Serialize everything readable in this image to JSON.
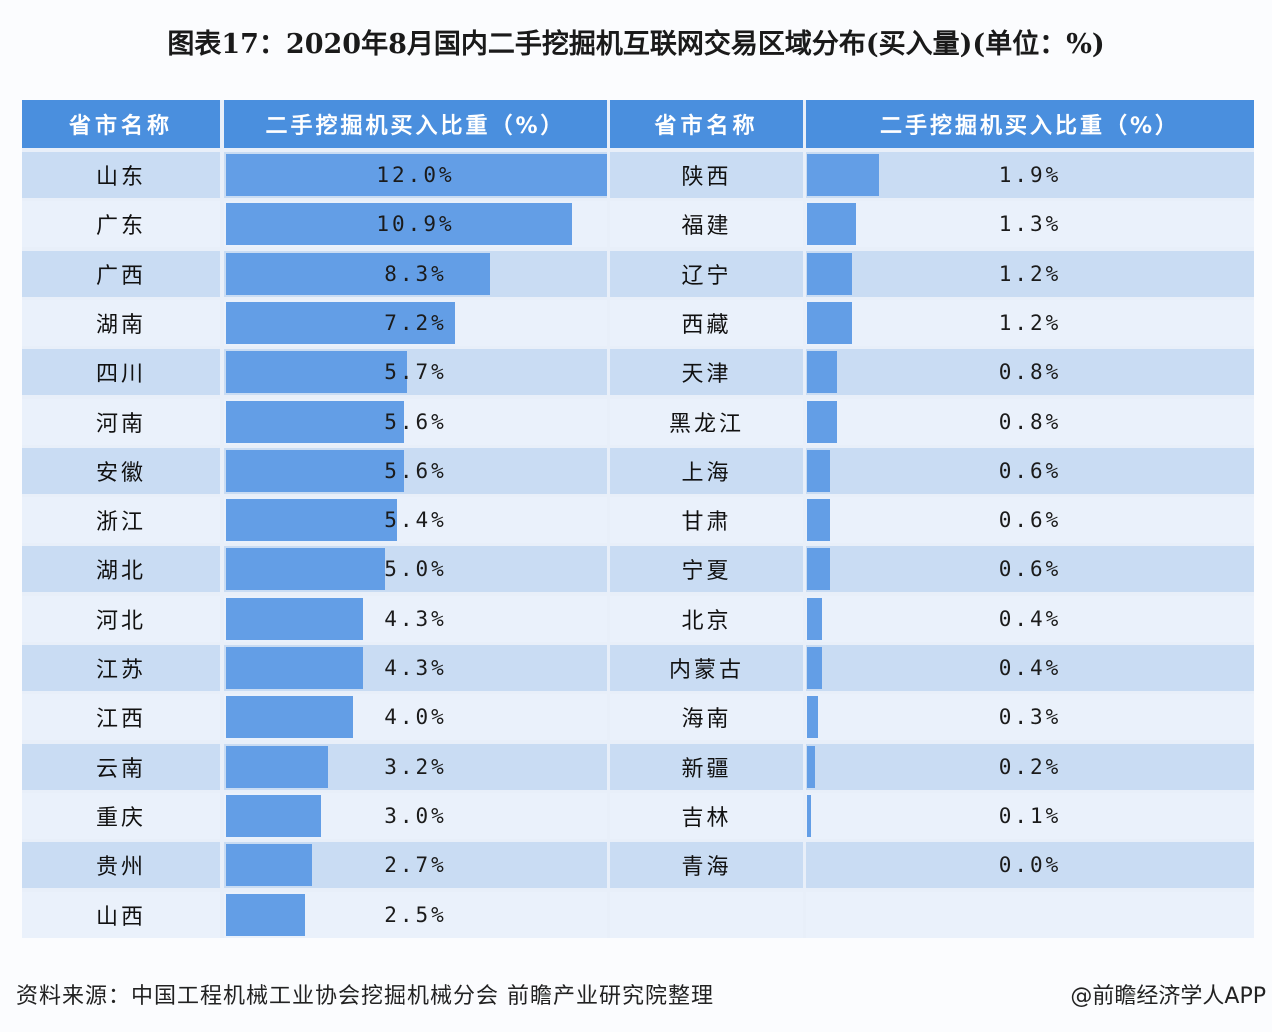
{
  "title": "图表17：2020年8月国内二手挖掘机互联网交易区域分布(买入量)(单位：%)",
  "headers": {
    "left_name": "省市名称",
    "left_value": "二手挖掘机买入比重（%）",
    "right_name": "省市名称",
    "right_value": "二手挖掘机买入比重（%）"
  },
  "colors": {
    "header_bg": "#4a8fde",
    "bar": "#639ee6",
    "row_dark": "#c9dcf3",
    "row_light": "#eaf1fb"
  },
  "rows_left": [
    {
      "name": "山东",
      "value": 12.0,
      "label": "12.0%"
    },
    {
      "name": "广东",
      "value": 10.9,
      "label": "10.9%"
    },
    {
      "name": "广西",
      "value": 8.3,
      "label": "8.3%"
    },
    {
      "name": "湖南",
      "value": 7.2,
      "label": "7.2%"
    },
    {
      "name": "四川",
      "value": 5.7,
      "label": "5.7%"
    },
    {
      "name": "河南",
      "value": 5.6,
      "label": "5.6%"
    },
    {
      "name": "安徽",
      "value": 5.6,
      "label": "5.6%"
    },
    {
      "name": "浙江",
      "value": 5.4,
      "label": "5.4%"
    },
    {
      "name": "湖北",
      "value": 5.0,
      "label": "5.0%"
    },
    {
      "name": "河北",
      "value": 4.3,
      "label": "4.3%"
    },
    {
      "name": "江苏",
      "value": 4.3,
      "label": "4.3%"
    },
    {
      "name": "江西",
      "value": 4.0,
      "label": "4.0%"
    },
    {
      "name": "云南",
      "value": 3.2,
      "label": "3.2%"
    },
    {
      "name": "重庆",
      "value": 3.0,
      "label": "3.0%"
    },
    {
      "name": "贵州",
      "value": 2.7,
      "label": "2.7%"
    },
    {
      "name": "山西",
      "value": 2.5,
      "label": "2.5%"
    }
  ],
  "rows_right": [
    {
      "name": "陕西",
      "value": 1.9,
      "label": "1.9%"
    },
    {
      "name": "福建",
      "value": 1.3,
      "label": "1.3%"
    },
    {
      "name": "辽宁",
      "value": 1.2,
      "label": "1.2%"
    },
    {
      "name": "西藏",
      "value": 1.2,
      "label": "1.2%"
    },
    {
      "name": "天津",
      "value": 0.8,
      "label": "0.8%"
    },
    {
      "name": "黑龙江",
      "value": 0.8,
      "label": "0.8%"
    },
    {
      "name": "上海",
      "value": 0.6,
      "label": "0.6%"
    },
    {
      "name": "甘肃",
      "value": 0.6,
      "label": "0.6%"
    },
    {
      "name": "宁夏",
      "value": 0.6,
      "label": "0.6%"
    },
    {
      "name": "北京",
      "value": 0.4,
      "label": "0.4%"
    },
    {
      "name": "内蒙古",
      "value": 0.4,
      "label": "0.4%"
    },
    {
      "name": "海南",
      "value": 0.3,
      "label": "0.3%"
    },
    {
      "name": "新疆",
      "value": 0.2,
      "label": "0.2%"
    },
    {
      "name": "吉林",
      "value": 0.1,
      "label": "0.1%"
    },
    {
      "name": "青海",
      "value": 0.0,
      "label": "0.0%"
    }
  ],
  "footer": {
    "source": "资料来源：中国工程机械工业协会挖掘机械分会 前瞻产业研究院整理",
    "credit": "@前瞻经济学人APP"
  },
  "chart_data": {
    "type": "bar",
    "title": "图表17：2020年8月国内二手挖掘机互联网交易区域分布(买入量)(单位：%)",
    "xlabel": "省市名称",
    "ylabel": "二手挖掘机买入比重（%）",
    "orientation": "horizontal",
    "categories": [
      "山东",
      "广东",
      "广西",
      "湖南",
      "四川",
      "河南",
      "安徽",
      "浙江",
      "湖北",
      "河北",
      "江苏",
      "江西",
      "云南",
      "重庆",
      "贵州",
      "山西",
      "陕西",
      "福建",
      "辽宁",
      "西藏",
      "天津",
      "黑龙江",
      "上海",
      "甘肃",
      "宁夏",
      "北京",
      "内蒙古",
      "海南",
      "新疆",
      "吉林",
      "青海"
    ],
    "values": [
      12.0,
      10.9,
      8.3,
      7.2,
      5.7,
      5.6,
      5.6,
      5.4,
      5.0,
      4.3,
      4.3,
      4.0,
      3.2,
      3.0,
      2.7,
      2.5,
      1.9,
      1.3,
      1.2,
      1.2,
      0.8,
      0.8,
      0.6,
      0.6,
      0.6,
      0.4,
      0.4,
      0.3,
      0.2,
      0.1,
      0.0
    ],
    "unit": "%",
    "grid": false,
    "legend": null,
    "layout": "table with two column groups of inline bars"
  }
}
